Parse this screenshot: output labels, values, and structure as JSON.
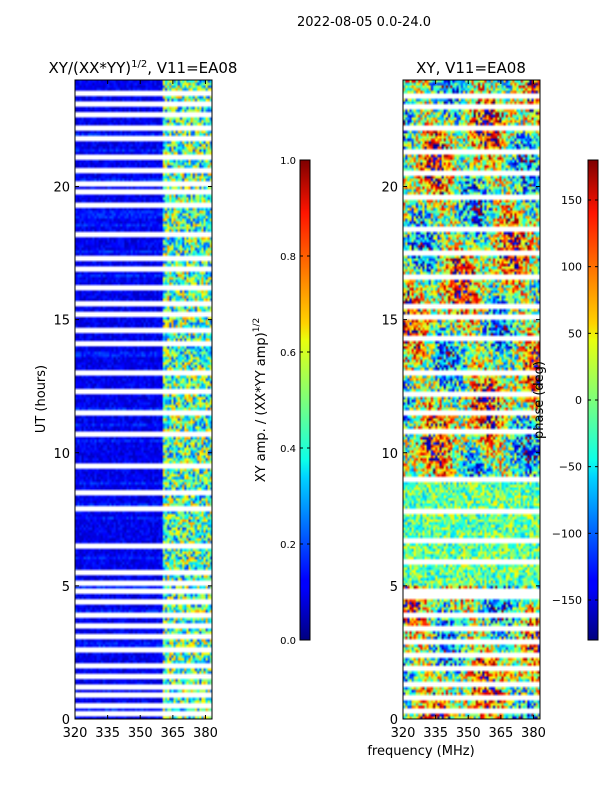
{
  "figure": {
    "suptitle": "2022-08-05 0.0-24.0",
    "xlabel": "frequency (MHz)"
  },
  "chart_data": [
    {
      "type": "heatmap",
      "title_main": "XY/(XX*YY)",
      "title_sup": "1/2",
      "title_tail": ", V11=EA08",
      "xlabel": "",
      "ylabel": "UT (hours)",
      "xlim": [
        320,
        383
      ],
      "ylim": [
        0,
        24
      ],
      "xticks": [
        320,
        335,
        350,
        365,
        380
      ],
      "yticks": [
        0,
        5,
        10,
        15,
        20
      ],
      "colorbar": {
        "label_main": "XY amp. / (XX*YY amp)",
        "label_sup": "1/2",
        "range": [
          0.0,
          1.0
        ],
        "ticks": [
          "0.0",
          "0.2",
          "0.4",
          "0.6",
          "0.8",
          "1.0"
        ],
        "colormap": "jet"
      },
      "features": {
        "rfi_band_mhz": [
          360,
          383
        ],
        "gap_rows_hours": [
          0.2,
          0.5,
          0.9,
          1.2,
          1.6,
          2.0,
          2.6,
          3.1,
          3.5,
          3.9,
          4.4,
          4.8,
          5.1,
          5.5,
          6.5,
          7.9,
          8.5,
          9.5,
          10.7,
          11.5,
          12.3,
          13.0,
          14.1,
          14.6,
          15.2,
          15.6,
          16.2,
          16.9,
          17.3,
          18.2,
          19.3,
          19.8,
          20.1,
          20.6,
          21.1,
          21.8,
          22.2,
          22.7,
          23.1,
          23.5
        ]
      }
    },
    {
      "type": "heatmap",
      "title_main": "XY, V11=EA08",
      "xlabel": "",
      "ylabel": "",
      "xlim": [
        320,
        383
      ],
      "ylim": [
        0,
        24
      ],
      "xticks": [
        320,
        335,
        350,
        365,
        380
      ],
      "yticks": [
        0,
        5,
        10,
        15,
        20
      ],
      "colorbar": {
        "label_main": "phase (deg)",
        "range": [
          -180,
          180
        ],
        "ticks": [
          "−150",
          "−100",
          "−50",
          "0",
          "50",
          "100",
          "150"
        ],
        "tick_values": [
          -150,
          -100,
          -50,
          0,
          50,
          100,
          150
        ],
        "colormap": "jet"
      },
      "features": {
        "gap_rows_hours": [
          0.3,
          0.8,
          1.3,
          1.9,
          2.4,
          2.9,
          3.4,
          3.9,
          4.6,
          4.8,
          5.9,
          6.7,
          7.8,
          9.0,
          10.8,
          11.5,
          12.2,
          13.0,
          14.3,
          15.1,
          15.5,
          16.6,
          17.5,
          18.4,
          19.6,
          20.5,
          21.3,
          22.2,
          23.0,
          23.4
        ]
      }
    }
  ]
}
